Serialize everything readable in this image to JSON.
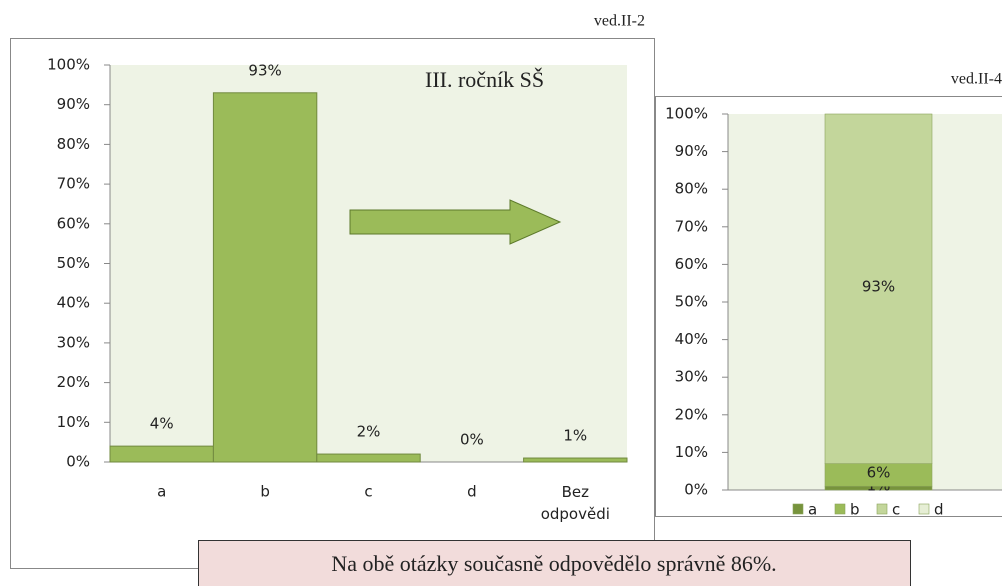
{
  "note": "Na obě otázky současně odpovědělo správně 86%.",
  "chart_data": [
    {
      "type": "bar",
      "caption": "ved.II-2",
      "annotation": "III. ročník SŠ",
      "categories": [
        "a",
        "b",
        "c",
        "d",
        "Bez odpovědi"
      ],
      "values": [
        4,
        93,
        2,
        0,
        1
      ],
      "value_labels": [
        "4%",
        "93%",
        "2%",
        "0%",
        "1%"
      ],
      "color": "#9bbb59",
      "ylim": [
        0,
        100
      ],
      "yticks": [
        {
          "value": 0,
          "label": "0%"
        },
        {
          "value": 10,
          "label": "10%"
        },
        {
          "value": 20,
          "label": "20%"
        },
        {
          "value": 30,
          "label": "30%"
        },
        {
          "value": 40,
          "label": "40%"
        },
        {
          "value": 50,
          "label": "50%"
        },
        {
          "value": 60,
          "label": "60%"
        },
        {
          "value": 70,
          "label": "70%"
        },
        {
          "value": 80,
          "label": "80%"
        },
        {
          "value": 90,
          "label": "90%"
        },
        {
          "value": 100,
          "label": "100%"
        }
      ]
    },
    {
      "type": "stacked_bar",
      "caption": "ved.II-4",
      "categories": [
        null
      ],
      "series": [
        {
          "name": "a",
          "color": "#77933c",
          "values": [
            1
          ],
          "value_labels": [
            "1%"
          ]
        },
        {
          "name": "b",
          "color": "#9bbb59",
          "values": [
            6
          ],
          "value_labels": [
            "6%"
          ]
        },
        {
          "name": "c",
          "color": "#c3d69b",
          "values": [
            93
          ],
          "value_labels": [
            "93%"
          ]
        },
        {
          "name": "d",
          "color": "#e6eed5",
          "values": [
            0
          ],
          "value_labels": [
            null
          ]
        }
      ],
      "ylim": [
        0,
        100
      ],
      "yticks": [
        {
          "value": 0,
          "label": "0%"
        },
        {
          "value": 10,
          "label": "10%"
        },
        {
          "value": 20,
          "label": "20%"
        },
        {
          "value": 30,
          "label": "30%"
        },
        {
          "value": 40,
          "label": "40%"
        },
        {
          "value": 50,
          "label": "50%"
        },
        {
          "value": 60,
          "label": "60%"
        },
        {
          "value": 70,
          "label": "70%"
        },
        {
          "value": 80,
          "label": "80%"
        },
        {
          "value": 90,
          "label": "90%"
        },
        {
          "value": 100,
          "label": "100%"
        }
      ],
      "legend": "bottom"
    }
  ]
}
